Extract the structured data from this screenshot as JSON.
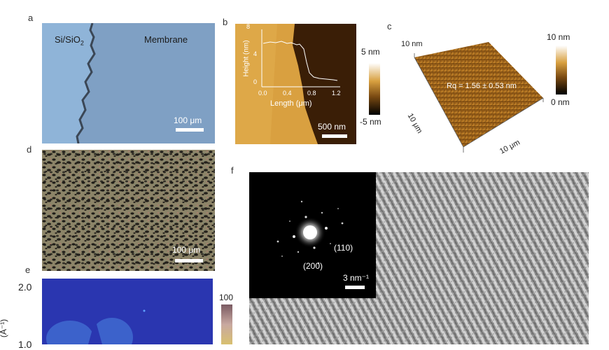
{
  "panels": {
    "a": {
      "letter": "a",
      "left_label": "Si/SiO",
      "left_label_sub": "2",
      "right_label": "Membrane",
      "scale_label": "100 μm",
      "colors": {
        "substrate": "#8fb2d6",
        "membrane": "#7fa0c4",
        "edge": "#3c4a5a"
      }
    },
    "b": {
      "letter": "b",
      "scale_label": "500 nm",
      "colorbar_top": "5 nm",
      "colorbar_bottom": "-5 nm",
      "inset": {
        "ylabel": "Height (nm)",
        "xlabel": "Length (μm)",
        "yticks": [
          "8",
          "4",
          "0"
        ],
        "xticks": [
          "0.0",
          "0.4",
          "0.8",
          "1.2"
        ]
      }
    },
    "c": {
      "letter": "c",
      "colorbar_top": "10 nm",
      "colorbar_bottom": "0 nm",
      "z_label": "10 nm",
      "roughness": "Rq = 1.56 ± 0.53 nm",
      "axis_left": "10 μm",
      "axis_right": "10 μm"
    },
    "d": {
      "letter": "d",
      "scale_label": "100 μm"
    },
    "e": {
      "letter": "e",
      "yticks": [
        "2.0",
        "1.0"
      ],
      "ylabel": "(Å⁻¹)",
      "colorbar_top": "100"
    },
    "f": {
      "letter": "f",
      "spot_110": "(110)",
      "spot_200": "(200)",
      "scale_label": "3 nm⁻¹"
    }
  }
}
